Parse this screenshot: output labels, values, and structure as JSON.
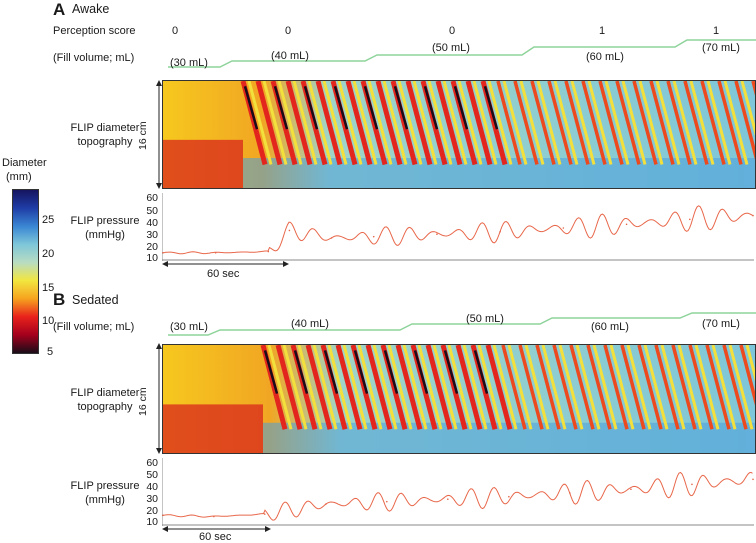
{
  "colorbar": {
    "title": "Diameter",
    "unit": "(mm)",
    "ticks": [
      "25",
      "20",
      "15",
      "10",
      "5"
    ],
    "colors": [
      "#15145e",
      "#1f3da6",
      "#3a86d3",
      "#7ec6d9",
      "#b8dcc2",
      "#f2e640",
      "#f6a31f",
      "#e8221c",
      "#a4001d",
      "#1a0c18"
    ]
  },
  "panel_a": {
    "letter": "A",
    "title": "Awake",
    "perception_label": "Perception score",
    "perception_scores": [
      "0",
      "0",
      "0",
      "1",
      "1"
    ],
    "fill_label": "(Fill volume; mL)",
    "fill_volumes": [
      "(30 mL)",
      "(40 mL)",
      "(50 mL)",
      "(60 mL)",
      "(70 mL)"
    ],
    "topo_label_1": "FLIP diameter",
    "topo_label_2": "topography",
    "length_label": "16 cm",
    "pressure_label_1": "FLIP pressure",
    "pressure_label_2": "(mmHg)",
    "pressure_ticks": [
      "60",
      "50",
      "40",
      "30",
      "20",
      "10"
    ],
    "time_scale": "60 sec"
  },
  "panel_b": {
    "letter": "B",
    "title": "Sedated",
    "fill_label": "(Fill volume; mL)",
    "fill_volumes": [
      "(30 mL)",
      "(40 mL)",
      "(50 mL)",
      "(60 mL)",
      "(70 mL)"
    ],
    "topo_label_1": "FLIP diameter",
    "topo_label_2": "topography",
    "length_label": "16 cm",
    "pressure_label_1": "FLIP pressure",
    "pressure_label_2": "(mmHg)",
    "pressure_ticks": [
      "60",
      "50",
      "40",
      "30",
      "20",
      "10"
    ],
    "time_scale": "60 sec"
  },
  "chart_data": [
    {
      "type": "line",
      "title": "Awake - FLIP pressure",
      "ylabel": "FLIP pressure (mmHg)",
      "ylim": [
        10,
        60
      ],
      "x_unit": "sec",
      "series": [
        {
          "name": "FLIP pressure",
          "x": [
            0,
            25,
            50,
            60,
            80,
            100,
            130,
            160,
            190,
            220,
            250,
            280
          ],
          "y": [
            15,
            15,
            16,
            33,
            27,
            28,
            30,
            32,
            35,
            38,
            42,
            45
          ]
        }
      ]
    },
    {
      "type": "line",
      "title": "Sedated - FLIP pressure",
      "ylabel": "FLIP pressure (mmHg)",
      "ylim": [
        10,
        60
      ],
      "x_unit": "sec",
      "series": [
        {
          "name": "FLIP pressure",
          "x": [
            0,
            25,
            50,
            80,
            110,
            140,
            170,
            200,
            230,
            260,
            290
          ],
          "y": [
            17,
            16,
            18,
            26,
            28,
            30,
            32,
            35,
            38,
            42,
            46
          ]
        }
      ]
    }
  ]
}
